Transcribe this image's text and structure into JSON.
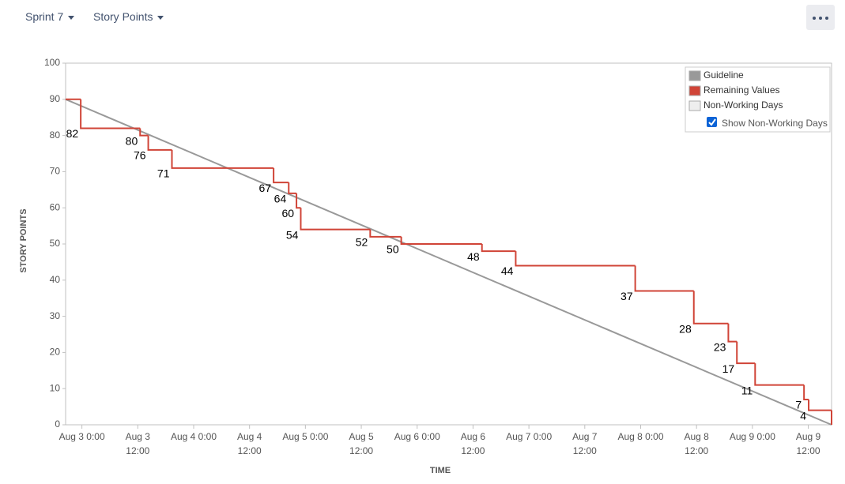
{
  "toolbar": {
    "sprint": "Sprint 7",
    "metric": "Story Points"
  },
  "chart_data": {
    "type": "step",
    "y_label": "STORY POINTS",
    "x_label": "TIME",
    "ylim": [
      0,
      100
    ],
    "yticks": [
      0,
      10,
      20,
      30,
      40,
      50,
      60,
      70,
      80,
      90,
      100
    ],
    "xlim": [
      "Aug 2 20:30",
      "Aug 9 17:00"
    ],
    "xticks": [
      {
        "value": "Aug 3 0:00",
        "label": [
          "Aug 3 0:00"
        ]
      },
      {
        "value": "Aug 3 12:00",
        "label": [
          "Aug 3",
          "12:00"
        ]
      },
      {
        "value": "Aug 4 0:00",
        "label": [
          "Aug 4 0:00"
        ]
      },
      {
        "value": "Aug 4 12:00",
        "label": [
          "Aug 4",
          "12:00"
        ]
      },
      {
        "value": "Aug 5 0:00",
        "label": [
          "Aug 5 0:00"
        ]
      },
      {
        "value": "Aug 5 12:00",
        "label": [
          "Aug 5",
          "12:00"
        ]
      },
      {
        "value": "Aug 6 0:00",
        "label": [
          "Aug 6 0:00"
        ]
      },
      {
        "value": "Aug 6 12:00",
        "label": [
          "Aug 6",
          "12:00"
        ]
      },
      {
        "value": "Aug 7 0:00",
        "label": [
          "Aug 7 0:00"
        ]
      },
      {
        "value": "Aug 7 12:00",
        "label": [
          "Aug 7",
          "12:00"
        ]
      },
      {
        "value": "Aug 8 0:00",
        "label": [
          "Aug 8 0:00"
        ]
      },
      {
        "value": "Aug 8 12:00",
        "label": [
          "Aug 8",
          "12:00"
        ]
      },
      {
        "value": "Aug 9 0:00",
        "label": [
          "Aug 9 0:00"
        ]
      },
      {
        "value": "Aug 9 12:00",
        "label": [
          "Aug 9",
          "12:00"
        ]
      }
    ],
    "series": [
      {
        "name": "Guideline",
        "color": "#999999",
        "x": [
          "Aug 2 20:30",
          "Aug 9 17:00"
        ],
        "values": [
          90,
          0
        ]
      },
      {
        "name": "Remaining Values",
        "color": "#d04437",
        "x": [
          "Aug 2 20:30",
          "Aug 2 23:45",
          "Aug 3 12:30",
          "Aug 3 14:15",
          "Aug 3 19:20",
          "Aug 4 17:10",
          "Aug 4 20:25",
          "Aug 4 22:05",
          "Aug 4 23:00",
          "Aug 5 13:55",
          "Aug 5 20:35",
          "Aug 6 13:55",
          "Aug 6 21:10",
          "Aug 7 22:50",
          "Aug 8 11:25",
          "Aug 8 18:50",
          "Aug 8 20:40",
          "Aug 9 0:35",
          "Aug 9 11:05",
          "Aug 9 12:05",
          "Aug 9 17:00"
        ],
        "values": [
          90,
          82,
          80,
          76,
          71,
          67,
          64,
          60,
          54,
          52,
          50,
          48,
          44,
          37,
          28,
          23,
          17,
          11,
          7,
          4,
          0
        ],
        "value_labels": [
          null,
          "82",
          "80",
          "76",
          "71",
          "67",
          "64",
          "60",
          "54",
          "52",
          "50",
          "48",
          "44",
          "37",
          "28",
          "23",
          "17",
          "11",
          "7",
          "4",
          null
        ]
      },
      {
        "name": "Non-Working Days",
        "color": "#eeeeee",
        "x": [],
        "values": []
      }
    ],
    "show_non_working_days": {
      "label": "Show Non-Working Days",
      "checked": true
    }
  }
}
